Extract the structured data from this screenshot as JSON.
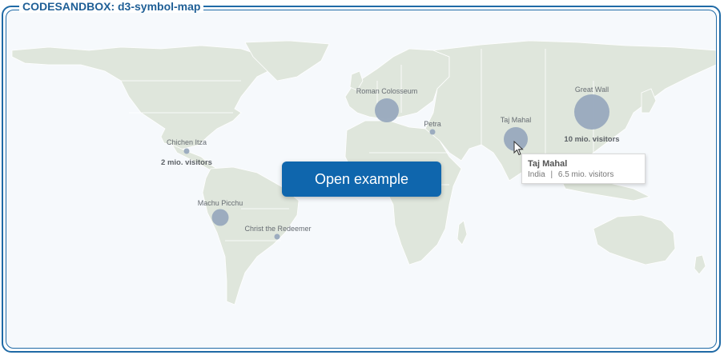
{
  "window": {
    "title": "CODESANDBOX: d3-symbol-map"
  },
  "map": {
    "landmarks": [
      {
        "name": "Roman Colosseum"
      },
      {
        "name": "Great Wall",
        "visitors_label": "10 mio. visitors"
      },
      {
        "name": "Petra"
      },
      {
        "name": "Taj Mahal"
      },
      {
        "name": "Chichen Itza",
        "visitors_label": "2 mio. visitors"
      },
      {
        "name": "Machu Picchu"
      },
      {
        "name": "Christ the Redeemer"
      }
    ]
  },
  "tooltip": {
    "title": "Taj Mahal",
    "country": "India",
    "separator": "|",
    "visitors": "6.5 mio. visitors"
  },
  "button": {
    "label": "Open example"
  },
  "colors": {
    "accent": "#0f66ad",
    "frame": "#1f6aa6",
    "land": "#dfe6dc",
    "bubble": "#98a9bd"
  },
  "icons": {
    "cursor": "arrow-cursor-icon"
  }
}
